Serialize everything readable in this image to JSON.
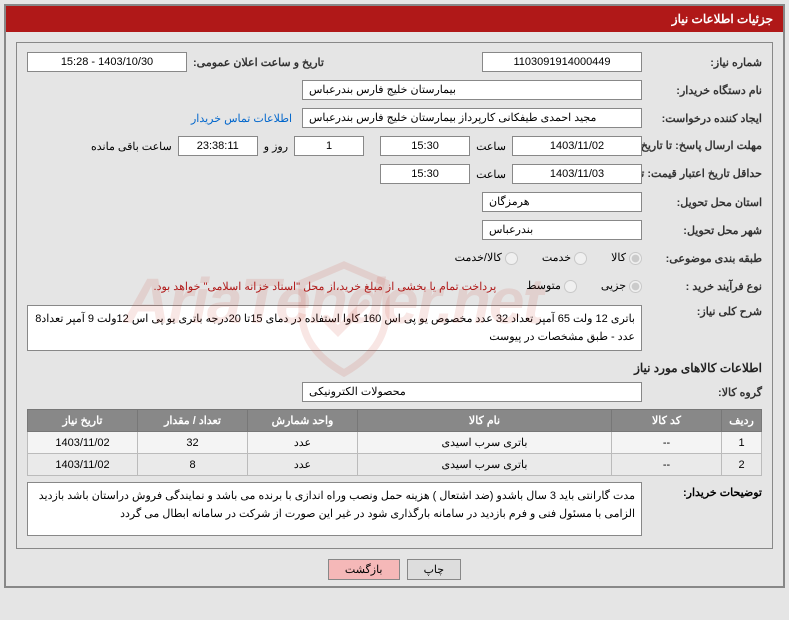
{
  "panel_title": "جزئیات اطلاعات نیاز",
  "labels": {
    "need_no": "شماره نیاز:",
    "public_date": "تاریخ و ساعت اعلان عمومی:",
    "buyer_org": "نام دستگاه خریدار:",
    "requester": "ایجاد کننده درخواست:",
    "contact_link": "اطلاعات تماس خریدار",
    "reply_deadline": "مهلت ارسال پاسخ: تا تاریخ:",
    "time_lbl": "ساعت",
    "days_and": "روز و",
    "time_remaining": "ساعت باقی مانده",
    "min_validity": "حداقل تاریخ اعتبار قیمت: تا تاریخ:",
    "delivery_province": "استان محل تحویل:",
    "delivery_city": "شهر محل تحویل:",
    "category": "طبقه بندی موضوعی:",
    "purchase_type": "نوع فرآیند خرید :",
    "need_summary": "شرح کلی نیاز:",
    "items_section": "اطلاعات کالاهای مورد نیاز",
    "goods_group": "گروه کالا:",
    "buyer_notes": "توضیحات خریدار:"
  },
  "fields": {
    "need_no": "1103091914000449",
    "public_date": "1403/10/30 - 15:28",
    "buyer_org": "بیمارستان خلیج فارس بندرعباس",
    "requester": "مجید احمدی طیفکانی کارپرداز بیمارستان خلیج فارس بندرعباس",
    "reply_date": "1403/11/02",
    "reply_time": "15:30",
    "days_left": "1",
    "countdown": "23:38:11",
    "validity_date": "1403/11/03",
    "validity_time": "15:30",
    "province": "هرمزگان",
    "city": "بندرعباس",
    "goods_group": "محصولات الکترونیکی"
  },
  "radios": {
    "cat_goods": "کالا",
    "cat_service": "خدمت",
    "cat_both": "کالا/خدمت",
    "proc_partial": "جزیی",
    "proc_medium": "متوسط"
  },
  "payment_note": "پرداخت تمام یا بخشی از مبلغ خرید،از محل \"اسناد خزانه اسلامی\" خواهد بود.",
  "need_summary": "باتری 12 ولت 65 آمپر تعداد 32 عدد مخصوص یو پی اس 160 کاوا  استفاده در دمای 15تا 20درجه  باتری یو پی اس 12ولت 9 آمپر تعداد8 عدد -  طبق مشخصات در پیوست",
  "table": {
    "headers": [
      "ردیف",
      "کد کالا",
      "نام کالا",
      "واحد شمارش",
      "تعداد / مقدار",
      "تاریخ نیاز"
    ],
    "rows": [
      [
        "1",
        "--",
        "باتری سرب اسیدی",
        "عدد",
        "32",
        "1403/11/02"
      ],
      [
        "2",
        "--",
        "باتری سرب اسیدی",
        "عدد",
        "8",
        "1403/11/02"
      ]
    ],
    "col_widths": [
      "40px",
      "110px",
      "auto",
      "110px",
      "110px",
      "110px"
    ]
  },
  "buyer_notes": "مدت گارانتی باید 3 سال باشدو (ضد اشتعال ) هزینه حمل ونصب وراه اندازی با برنده می باشد و نمایندگی فروش دراستان  باشد بازدید الزامی با  مسئول فنی و فرم بازدید در سامانه بارگذاری شود در غیر این صورت از شرکت در سامانه ابطال می گردد",
  "buttons": {
    "print": "چاپ",
    "back": "بازگشت"
  },
  "watermark_text": "AriaTender.net"
}
